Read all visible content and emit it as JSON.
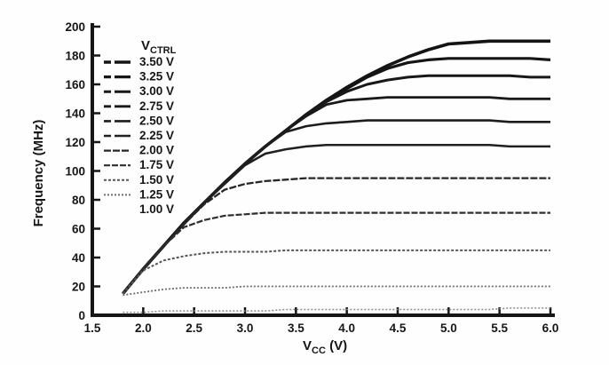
{
  "chart_data": {
    "type": "line",
    "title": "",
    "xlabel": {
      "base": "V",
      "sub": "CC",
      "unit": " (V)"
    },
    "ylabel": "Frequency (MHz)",
    "xlim": [
      1.5,
      6.0
    ],
    "ylim": [
      0,
      200
    ],
    "xtick_labels": [
      "1.5",
      "2.0",
      "2.5",
      "3.0",
      "3.5",
      "4.0",
      "4.5",
      "5.0",
      "5.5",
      "6.0"
    ],
    "xtick_values": [
      1.5,
      2.0,
      2.5,
      3.0,
      3.5,
      4.0,
      4.5,
      5.0,
      5.5,
      6.0
    ],
    "ytick_labels": [
      "0",
      "20",
      "40",
      "60",
      "80",
      "100",
      "120",
      "140",
      "160",
      "180",
      "200"
    ],
    "ytick_values": [
      0,
      20,
      40,
      60,
      80,
      100,
      120,
      140,
      160,
      180,
      200
    ],
    "grid": false,
    "legend_position": "top-left",
    "legend_title": {
      "base": "V",
      "sub": "CTRL"
    },
    "axis_color": "#161616",
    "background": "#fefefe",
    "x_samples": [
      1.8,
      2.0,
      2.2,
      2.4,
      2.6,
      2.8,
      3.0,
      3.2,
      3.4,
      3.6,
      3.8,
      4.0,
      4.2,
      4.4,
      4.6,
      4.8,
      5.0,
      5.2,
      5.4,
      5.6,
      5.8,
      6.0
    ],
    "series": [
      {
        "name": "3.50 V",
        "vctrl": 3.5,
        "plateau_mhz": 190,
        "color": "#141414",
        "width": 3.6,
        "dash": "",
        "values": [
          15,
          32,
          48,
          64,
          78,
          92,
          105,
          117,
          128,
          139,
          149,
          158,
          166,
          173,
          179,
          184,
          188,
          189,
          190,
          190,
          190,
          190
        ]
      },
      {
        "name": "3.25 V",
        "vctrl": 3.25,
        "plateau_mhz": 178,
        "color": "#151515",
        "width": 3.2,
        "dash": "",
        "values": [
          15,
          32,
          48,
          64,
          78,
          92,
          105,
          117,
          128,
          139,
          149,
          157,
          165,
          171,
          175,
          177,
          178,
          178,
          178,
          178,
          178,
          177
        ]
      },
      {
        "name": "3.00 V",
        "vctrl": 3.0,
        "plateau_mhz": 166,
        "color": "#181818",
        "width": 3.0,
        "dash": "",
        "values": [
          15,
          32,
          48,
          64,
          78,
          92,
          105,
          117,
          128,
          139,
          148,
          155,
          160,
          163,
          165,
          166,
          166,
          166,
          166,
          166,
          165,
          165
        ]
      },
      {
        "name": "2.75 V",
        "vctrl": 2.75,
        "plateau_mhz": 151,
        "color": "#1a1a1a",
        "width": 2.8,
        "dash": "",
        "values": [
          15,
          32,
          48,
          64,
          78,
          92,
          105,
          117,
          128,
          138,
          146,
          149,
          150,
          151,
          151,
          151,
          151,
          151,
          151,
          150,
          150,
          150
        ]
      },
      {
        "name": "2.50 V",
        "vctrl": 2.5,
        "plateau_mhz": 135,
        "color": "#1d1d1d",
        "width": 2.6,
        "dash": "",
        "values": [
          15,
          32,
          48,
          64,
          78,
          92,
          105,
          117,
          127,
          131,
          133,
          134,
          135,
          135,
          135,
          135,
          135,
          135,
          135,
          134,
          134,
          134
        ]
      },
      {
        "name": "2.25 V",
        "vctrl": 2.25,
        "plateau_mhz": 118,
        "color": "#202020",
        "width": 2.5,
        "dash": "",
        "values": [
          15,
          32,
          48,
          63,
          78,
          91,
          104,
          112,
          115,
          117,
          118,
          118,
          118,
          118,
          118,
          118,
          118,
          118,
          118,
          117,
          117,
          117
        ]
      },
      {
        "name": "2.00 V",
        "vctrl": 2.0,
        "plateau_mhz": 95,
        "color": "#262626",
        "width": 2.3,
        "dash": "8 2",
        "values": [
          15,
          32,
          48,
          63,
          77,
          87,
          91,
          93,
          94,
          95,
          95,
          95,
          95,
          95,
          95,
          95,
          95,
          95,
          95,
          95,
          95,
          95
        ]
      },
      {
        "name": "1.75 V",
        "vctrl": 1.75,
        "plateau_mhz": 71,
        "color": "#2e2e2e",
        "width": 2.2,
        "dash": "7 2",
        "values": [
          15,
          32,
          48,
          61,
          66,
          69,
          70,
          71,
          71,
          71,
          71,
          71,
          71,
          71,
          71,
          71,
          71,
          71,
          71,
          71,
          71,
          71
        ]
      },
      {
        "name": "1.50 V",
        "vctrl": 1.5,
        "plateau_mhz": 45,
        "color": "#555555",
        "width": 2.0,
        "dash": "3 2",
        "values": [
          15,
          31,
          38,
          41,
          43,
          44,
          44,
          44,
          45,
          45,
          45,
          45,
          45,
          45,
          45,
          45,
          45,
          45,
          45,
          45,
          45,
          45
        ]
      },
      {
        "name": "1.25 V",
        "vctrl": 1.25,
        "plateau_mhz": 20,
        "color": "#6e6e6e",
        "width": 1.8,
        "dash": "2 2",
        "values": [
          14,
          16,
          18,
          19,
          19,
          19,
          20,
          20,
          20,
          20,
          20,
          20,
          20,
          20,
          20,
          20,
          20,
          20,
          20,
          20,
          20,
          20
        ]
      },
      {
        "name": "1.00 V",
        "vctrl": 1.0,
        "plateau_mhz": 4,
        "color": "#8a8a8a",
        "width": 1.5,
        "dash": "2 2",
        "values": [
          2,
          2,
          3,
          3,
          3,
          3,
          3,
          3,
          4,
          4,
          4,
          4,
          4,
          4,
          4,
          4,
          4,
          4,
          4,
          5,
          5,
          5
        ]
      }
    ]
  }
}
